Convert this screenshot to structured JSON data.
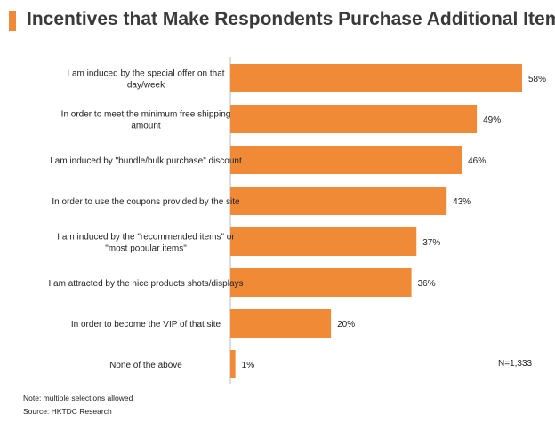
{
  "chart_data": {
    "type": "bar",
    "orientation": "horizontal",
    "title": "Incentives that Make Respondents Purchase Additional Items",
    "categories": [
      [
        "I am induced by the special offer on that",
        "day/week"
      ],
      [
        "In order to meet the minimum free shipping",
        "amount"
      ],
      [
        "I am induced by \"bundle/bulk purchase\" discount"
      ],
      [
        "In order to use the coupons provided by the site"
      ],
      [
        "I am induced by the \"recommended items\" or",
        "\"most popular items\""
      ],
      [
        "I am attracted by the nice products shots/displays"
      ],
      [
        "In order to become the VIP of that site"
      ],
      [
        "None of the above"
      ]
    ],
    "values": [
      58,
      49,
      46,
      43,
      37,
      36,
      20,
      1
    ],
    "value_labels": [
      "58%",
      "49%",
      "46%",
      "43%",
      "37%",
      "36%",
      "20%",
      "1%"
    ],
    "unit": "%",
    "color": "#f08a36",
    "grid": false,
    "annotation": "N=1,333"
  },
  "notes": {
    "note": "Note: multiple selections allowed",
    "source": "Source: HKTDC Research"
  }
}
